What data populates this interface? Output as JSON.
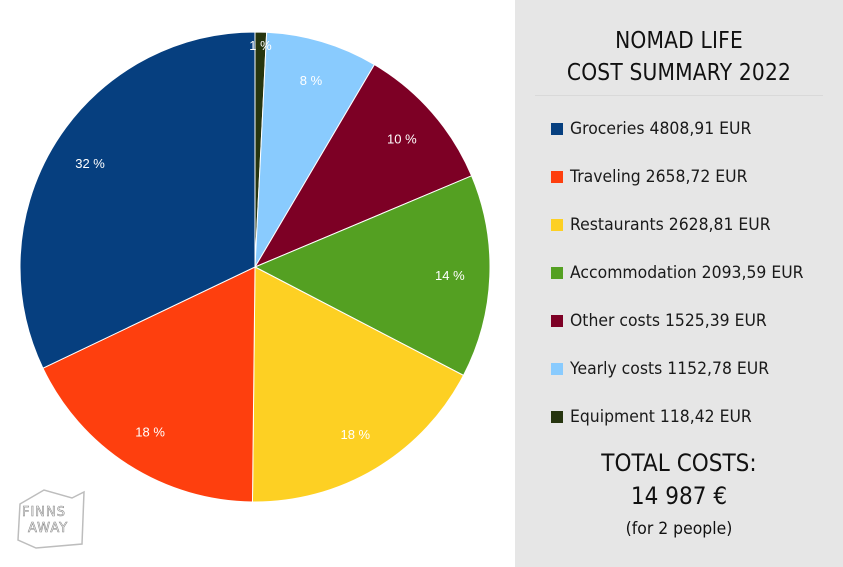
{
  "colors": {
    "groceries": "#063f7f",
    "traveling": "#fe3f0e",
    "restaurants": "#fdd023",
    "accommodation": "#54a022",
    "other": "#7d0025",
    "yearly": "#89cbfe",
    "equipment": "#26350f",
    "panel": "#e6e6e6"
  },
  "chart_data": {
    "type": "pie",
    "title": "NOMAD LIFE COST SUMMARY 2022",
    "start": "12 o'clock, clockwise",
    "slices": [
      {
        "key": "equipment",
        "label": "Equipment",
        "value": 118.42,
        "pct_label": "1 %"
      },
      {
        "key": "yearly",
        "label": "Yearly costs",
        "value": 1152.78,
        "pct_label": "8 %"
      },
      {
        "key": "other",
        "label": "Other costs",
        "value": 1525.39,
        "pct_label": "10 %"
      },
      {
        "key": "accommodation",
        "label": "Accommodation",
        "value": 2093.59,
        "pct_label": "14 %"
      },
      {
        "key": "restaurants",
        "label": "Restaurants",
        "value": 2628.81,
        "pct_label": "18 %"
      },
      {
        "key": "traveling",
        "label": "Traveling",
        "value": 2658.72,
        "pct_label": "18 %"
      },
      {
        "key": "groceries",
        "label": "Groceries",
        "value": 4808.91,
        "pct_label": "32 %"
      }
    ]
  },
  "panel": {
    "title_line1": "NOMAD LIFE",
    "title_line2": "COST SUMMARY 2022",
    "legend": [
      {
        "key": "groceries",
        "text": "Groceries 4808,91 EUR"
      },
      {
        "key": "traveling",
        "text": "Traveling 2658,72 EUR"
      },
      {
        "key": "restaurants",
        "text": "Restaurants 2628,81 EUR"
      },
      {
        "key": "accommodation",
        "text": "Accommodation 2093,59 EUR"
      },
      {
        "key": "other",
        "text": "Other costs 1525,39 EUR"
      },
      {
        "key": "yearly",
        "text": "Yearly costs 1152,78 EUR"
      },
      {
        "key": "equipment",
        "text": "Equipment 118,42 EUR"
      }
    ],
    "total_label": "TOTAL COSTS:",
    "total_value": "14 987 €",
    "total_note": "(for 2 people)"
  },
  "logo": {
    "line1": "FINNS",
    "line2": "AWAY"
  }
}
